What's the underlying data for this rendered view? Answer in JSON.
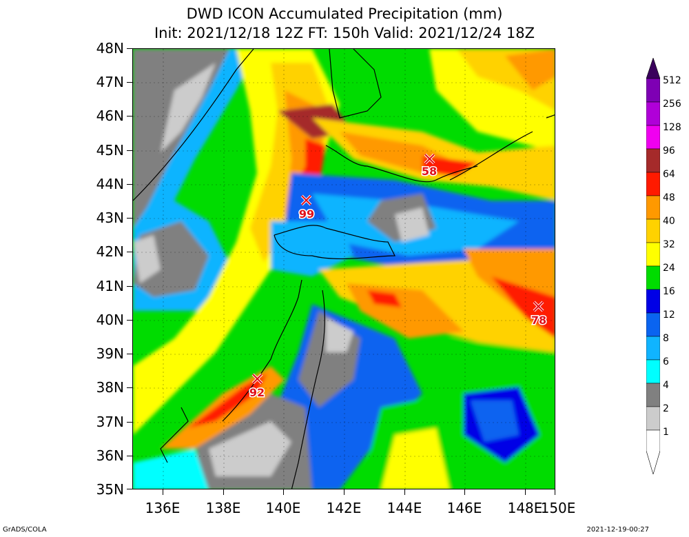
{
  "title": {
    "line1": "DWD ICON Accumulated Precipitation (mm)",
    "line2": "Init: 2021/12/18 12Z  FT: 150h  Valid: 2021/12/24 18Z"
  },
  "y_axis": {
    "labels": [
      "48N",
      "47N",
      "46N",
      "45N",
      "44N",
      "43N",
      "42N",
      "41N",
      "40N",
      "39N",
      "38N",
      "37N",
      "36N",
      "35N"
    ]
  },
  "x_axis": {
    "labels": [
      "136E",
      "138E",
      "140E",
      "142E",
      "144E",
      "146E",
      "148E",
      "150E"
    ]
  },
  "legend": {
    "levels": [
      "512",
      "256",
      "128",
      "96",
      "64",
      "48",
      "40",
      "32",
      "24",
      "16",
      "12",
      "8",
      "6",
      "4",
      "2",
      "1"
    ],
    "colors": [
      "#3a005c",
      "#7e00b4",
      "#b000d8",
      "#f000f0",
      "#a52a2a",
      "#ff1a00",
      "#ff9900",
      "#ffd200",
      "#ffff00",
      "#00dc00",
      "#0000e6",
      "#0a64f0",
      "#10b4ff",
      "#00ffff",
      "#808080",
      "#cccccc",
      "#ffffff"
    ]
  },
  "markers": [
    {
      "value": "58"
    },
    {
      "value": "99"
    },
    {
      "value": "78"
    },
    {
      "value": "92"
    }
  ],
  "footer": {
    "left": "GrADS/COLA",
    "right": "2021-12-19-00:27"
  }
}
